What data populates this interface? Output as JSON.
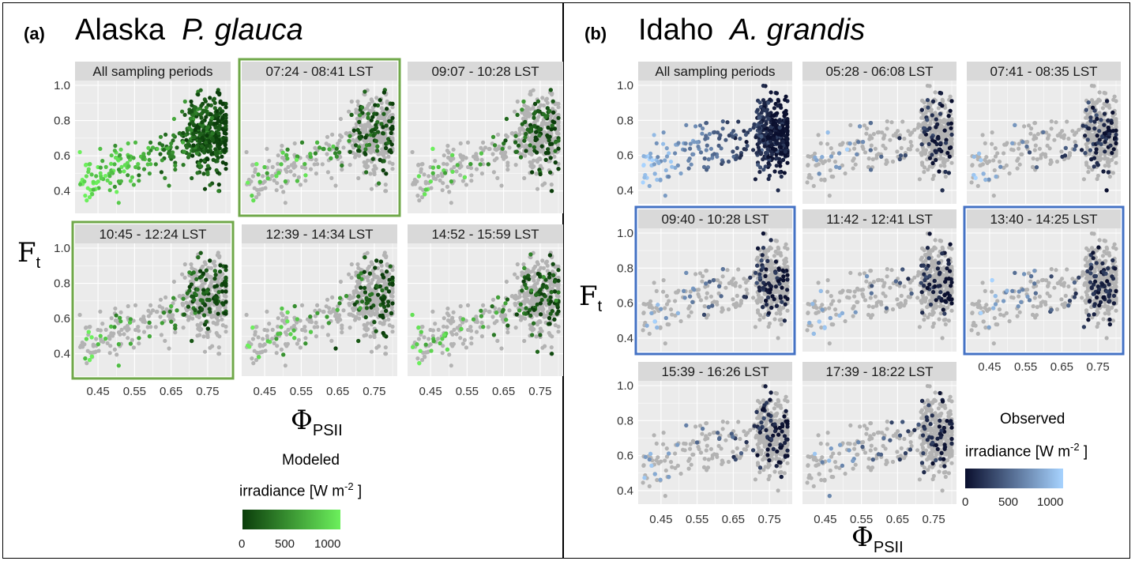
{
  "figure": {
    "panel_a": {
      "label": "(a)",
      "site": "Alaska",
      "species": "P. glauca",
      "ylabel_main": "F",
      "ylabel_sub": "t",
      "xlabel_main": "Φ",
      "xlabel_sub": "PSII",
      "colorbar": {
        "title_line1": "Modeled",
        "title_line2": "irradiance [W  m",
        "title_sup": "-2",
        "title_end": " ]",
        "ticks": [
          "0",
          "500",
          "1000"
        ],
        "color_low": "#0b3d0b",
        "color_high": "#6cf05c"
      },
      "highlight_color": "#70a84a"
    },
    "panel_b": {
      "label": "(b)",
      "site": "Idaho",
      "species": "A. grandis",
      "ylabel_main": "F",
      "ylabel_sub": "t",
      "xlabel_main": "Φ",
      "xlabel_sub": "PSII",
      "colorbar": {
        "title_line1": "Observed",
        "title_line2": "irradiance [W  m",
        "title_sup": "-2",
        "title_end": " ]",
        "ticks": [
          "0",
          "500",
          "1000"
        ],
        "color_low": "#0a0f2e",
        "color_high": "#a7d3ff"
      },
      "highlight_color": "#4472c4"
    }
  },
  "chart_data": [
    {
      "type": "scatter",
      "panel": "(a) Alaska P. glauca",
      "facets": [
        "All sampling periods",
        "07:24 - 08:41 LST",
        "09:07 - 10:28 LST",
        "10:45 - 12:24 LST",
        "12:39 - 14:34 LST",
        "14:52 - 15:59 LST"
      ],
      "highlighted_facets": [
        "07:24 - 08:41 LST",
        "10:45 - 12:24 LST"
      ],
      "xlabel": "ΦPSII",
      "ylabel": "Ft",
      "x_ticks": [
        "0.45",
        "0.55",
        "0.65",
        "0.75"
      ],
      "y_ticks": [
        "0.4",
        "0.6",
        "0.8",
        "1.0"
      ],
      "xlim": [
        0.4,
        0.8
      ],
      "ylim": [
        0.3,
        1.0
      ],
      "colorbar": {
        "label": "Modeled irradiance [W m-2]",
        "range": [
          0,
          1100
        ],
        "ticks": [
          0,
          500,
          1000
        ]
      },
      "point_cloud": {
        "cluster_x_range": [
          0.7,
          0.8
        ],
        "cluster_y_range": [
          0.45,
          1.0
        ],
        "tail_x_range": [
          0.4,
          0.7
        ],
        "tail_y_range": [
          0.35,
          0.7
        ],
        "background_points": "all periods in grey"
      }
    },
    {
      "type": "scatter",
      "panel": "(b) Idaho A. grandis",
      "facets": [
        "All sampling periods",
        "05:28 - 06:08 LST",
        "07:41 - 08:35 LST",
        "09:40 - 10:28 LST",
        "11:42 - 12:41 LST",
        "13:40 - 14:25 LST",
        "15:39 - 16:26 LST",
        "17:39 - 18:22 LST"
      ],
      "highlighted_facets": [
        "09:40 - 10:28 LST",
        "13:40 - 14:25 LST"
      ],
      "xlabel": "ΦPSII",
      "ylabel": "Ft",
      "x_ticks": [
        "0.45",
        "0.55",
        "0.65",
        "0.75"
      ],
      "y_ticks": [
        "0.4",
        "0.6",
        "0.8",
        "1.0"
      ],
      "xlim": [
        0.4,
        0.8
      ],
      "ylim": [
        0.35,
        1.0
      ],
      "colorbar": {
        "label": "Observed irradiance [W m-2]",
        "range": [
          0,
          1100
        ],
        "ticks": [
          0,
          500,
          1000
        ]
      },
      "point_cloud": {
        "cluster_x_range": [
          0.72,
          0.8
        ],
        "cluster_y_range": [
          0.45,
          1.0
        ],
        "tail_x_range": [
          0.4,
          0.7
        ],
        "tail_y_range": [
          0.45,
          0.7
        ],
        "background_points": "all periods in grey"
      }
    }
  ]
}
